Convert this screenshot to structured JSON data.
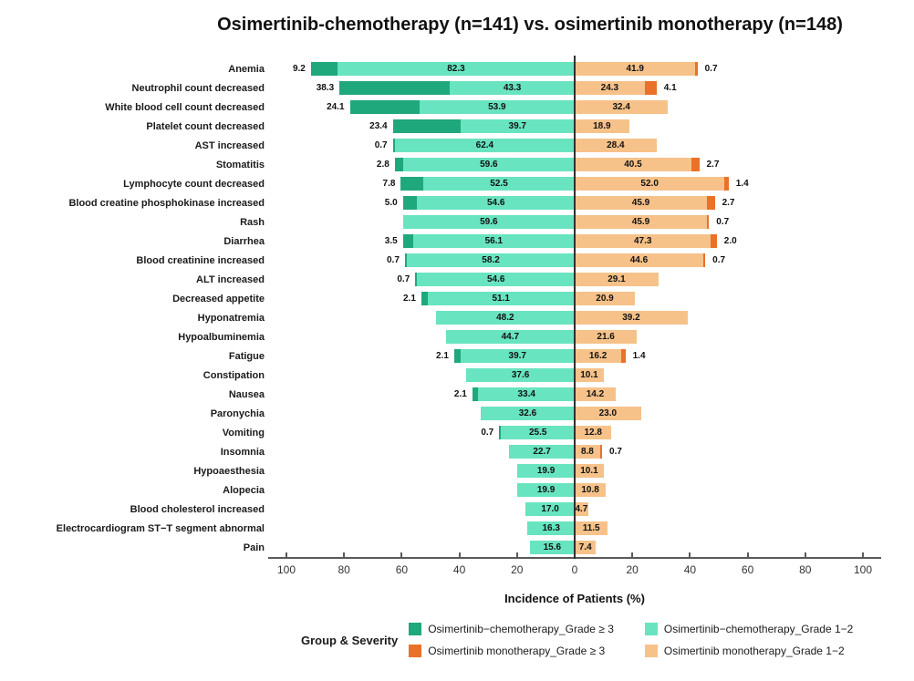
{
  "title": "Osimertinib-chemotherapy (n=141) vs. osimertinib monotherapy (n=148)",
  "chart_data": {
    "type": "bar",
    "subtype": "diverging-stacked-horizontal",
    "xlabel": "Incidence of Patients (%)",
    "axis_ticks": [
      100,
      80,
      60,
      40,
      20,
      0,
      20,
      40,
      60,
      80,
      100
    ],
    "x_range_each_side": [
      0,
      100
    ],
    "left_group": "Osimertinib-chemotherapy (n=141)",
    "right_group": "Osimertinib monotherapy (n=148)",
    "colors": {
      "chemo_grade3": "#1ea87c",
      "chemo_grade12": "#68e4c0",
      "mono_grade3": "#ea7128",
      "mono_grade12": "#f6c28a",
      "zero_line": "#2f2f2f",
      "axis_line": "#5a5a5a"
    },
    "rows": [
      {
        "category": "Anemia",
        "chemo_g3": 9.2,
        "chemo_g12": 82.3,
        "mono_g12": 41.9,
        "mono_g3": 0.7
      },
      {
        "category": "Neutrophil count decreased",
        "chemo_g3": 38.3,
        "chemo_g12": 43.3,
        "mono_g12": 24.3,
        "mono_g3": 4.1
      },
      {
        "category": "White blood cell count decreased",
        "chemo_g3": 24.1,
        "chemo_g12": 53.9,
        "mono_g12": 32.4,
        "mono_g3": null
      },
      {
        "category": "Platelet count decreased",
        "chemo_g3": 23.4,
        "chemo_g12": 39.7,
        "mono_g12": 18.9,
        "mono_g3": null
      },
      {
        "category": "AST increased",
        "chemo_g3": 0.7,
        "chemo_g12": 62.4,
        "mono_g12": 28.4,
        "mono_g3": null
      },
      {
        "category": "Stomatitis",
        "chemo_g3": 2.8,
        "chemo_g12": 59.6,
        "mono_g12": 40.5,
        "mono_g3": 2.7
      },
      {
        "category": "Lymphocyte count decreased",
        "chemo_g3": 7.8,
        "chemo_g12": 52.5,
        "mono_g12": 52.0,
        "mono_g3": 1.4
      },
      {
        "category": "Blood creatine phosphokinase increased",
        "chemo_g3": 5.0,
        "chemo_g12": 54.6,
        "mono_g12": 45.9,
        "mono_g3": 2.7
      },
      {
        "category": "Rash",
        "chemo_g3": null,
        "chemo_g12": 59.6,
        "mono_g12": 45.9,
        "mono_g3": 0.7
      },
      {
        "category": "Diarrhea",
        "chemo_g3": 3.5,
        "chemo_g12": 56.1,
        "mono_g12": 47.3,
        "mono_g3": 2.0
      },
      {
        "category": "Blood creatinine increased",
        "chemo_g3": 0.7,
        "chemo_g12": 58.2,
        "mono_g12": 44.6,
        "mono_g3": 0.7
      },
      {
        "category": "ALT increased",
        "chemo_g3": 0.7,
        "chemo_g12": 54.6,
        "mono_g12": 29.1,
        "mono_g3": null
      },
      {
        "category": "Decreased appetite",
        "chemo_g3": 2.1,
        "chemo_g12": 51.1,
        "mono_g12": 20.9,
        "mono_g3": null
      },
      {
        "category": "Hyponatremia",
        "chemo_g3": null,
        "chemo_g12": 48.2,
        "mono_g12": 39.2,
        "mono_g3": null
      },
      {
        "category": "Hypoalbuminemia",
        "chemo_g3": null,
        "chemo_g12": 44.7,
        "mono_g12": 21.6,
        "mono_g3": null
      },
      {
        "category": "Fatigue",
        "chemo_g3": 2.1,
        "chemo_g12": 39.7,
        "mono_g12": 16.2,
        "mono_g3": 1.4
      },
      {
        "category": "Constipation",
        "chemo_g3": null,
        "chemo_g12": 37.6,
        "mono_g12": 10.1,
        "mono_g3": null
      },
      {
        "category": "Nausea",
        "chemo_g3": 2.1,
        "chemo_g12": 33.4,
        "mono_g12": 14.2,
        "mono_g3": null
      },
      {
        "category": "Paronychia",
        "chemo_g3": null,
        "chemo_g12": 32.6,
        "mono_g12": 23.0,
        "mono_g3": null
      },
      {
        "category": "Vomiting",
        "chemo_g3": 0.7,
        "chemo_g12": 25.5,
        "mono_g12": 12.8,
        "mono_g3": null
      },
      {
        "category": "Insomnia",
        "chemo_g3": null,
        "chemo_g12": 22.7,
        "mono_g12": 8.8,
        "mono_g3": 0.7
      },
      {
        "category": "Hypoaesthesia",
        "chemo_g3": null,
        "chemo_g12": 19.9,
        "mono_g12": 10.1,
        "mono_g3": null
      },
      {
        "category": "Alopecia",
        "chemo_g3": null,
        "chemo_g12": 19.9,
        "mono_g12": 10.8,
        "mono_g3": null
      },
      {
        "category": "Blood cholesterol increased",
        "chemo_g3": null,
        "chemo_g12": 17.0,
        "mono_g12": 4.7,
        "mono_g3": null
      },
      {
        "category": "Electrocardiogram ST−T segment abnormal",
        "chemo_g3": null,
        "chemo_g12": 16.3,
        "mono_g12": 11.5,
        "mono_g3": null
      },
      {
        "category": "Pain",
        "chemo_g3": null,
        "chemo_g12": 15.6,
        "mono_g12": 7.4,
        "mono_g3": null
      }
    ]
  },
  "legend": {
    "title": "Group & Severity",
    "items": [
      {
        "key": "chemo_grade3",
        "label": "Osimertinib−chemotherapy_Grade ≥ 3",
        "color": "#1ea87c"
      },
      {
        "key": "mono_grade3",
        "label": "Osimertinib monotherapy_Grade ≥ 3",
        "color": "#ea7128"
      },
      {
        "key": "chemo_grade12",
        "label": "Osimertinib−chemotherapy_Grade 1−2",
        "color": "#68e4c0"
      },
      {
        "key": "mono_grade12",
        "label": "Osimertinib monotherapy_Grade 1−2",
        "color": "#f6c28a"
      }
    ]
  }
}
